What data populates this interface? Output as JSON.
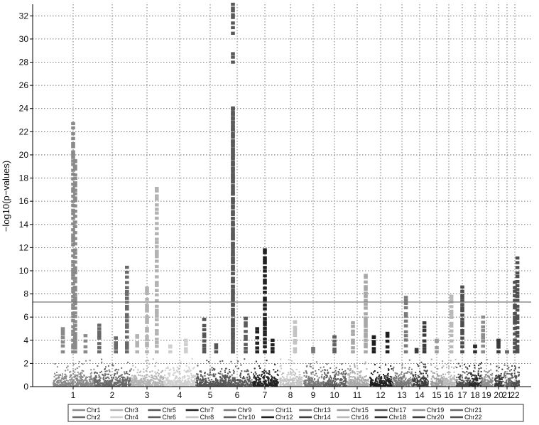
{
  "chart_data": {
    "type": "scatter",
    "title": "",
    "xlabel": "",
    "ylabel": "−log10(p−values)",
    "ylim": [
      0,
      33
    ],
    "yticks": [
      0,
      2,
      4,
      6,
      8,
      10,
      12,
      14,
      16,
      18,
      20,
      22,
      24,
      26,
      28,
      30,
      32
    ],
    "grid": true,
    "threshold": 7.3,
    "legend_position": "bottom",
    "chromosomes": [
      {
        "label": "1",
        "legend": "Chr1",
        "color": "#8a8a8a",
        "background_max": 3.0,
        "peaks": [
          [
            -0.25,
            5.0
          ],
          [
            0.0,
            22.7
          ],
          [
            0.05,
            19.5
          ],
          [
            0.3,
            4.4
          ]
        ]
      },
      {
        "label": "2",
        "legend": "Chr2",
        "color": "#6a6a6a",
        "background_max": 3.5,
        "peaks": [
          [
            -0.35,
            5.3
          ],
          [
            0.1,
            4.2
          ],
          [
            0.4,
            10.3
          ]
        ]
      },
      {
        "label": "3",
        "legend": "Chr3",
        "color": "#b3b3b3",
        "background_max": 2.8,
        "peaks": [
          [
            0.0,
            8.5
          ],
          [
            0.3,
            17.1
          ],
          [
            -0.3,
            4.4
          ]
        ]
      },
      {
        "label": "4",
        "legend": "Chr4",
        "color": "#cfcfcf",
        "background_max": 2.5,
        "peaks": [
          [
            0.2,
            4.0
          ],
          [
            -0.3,
            3.5
          ]
        ]
      },
      {
        "label": "5",
        "legend": "Chr5",
        "color": "#555555",
        "background_max": 3.0,
        "peaks": [
          [
            -0.2,
            5.8
          ],
          [
            0.2,
            3.6
          ]
        ]
      },
      {
        "label": "6",
        "legend": "Chr6",
        "color": "#5a5a5a",
        "background_max": 3.5,
        "peaks": [
          [
            -0.15,
            33.0
          ],
          [
            -0.15,
            24.0
          ],
          [
            0.3,
            5.9
          ]
        ]
      },
      {
        "label": "7",
        "legend": "Chr7",
        "color": "#222222",
        "background_max": 2.8,
        "peaks": [
          [
            0.0,
            11.8
          ],
          [
            -0.3,
            5.0
          ],
          [
            0.3,
            4.0
          ]
        ]
      },
      {
        "label": "8",
        "legend": "Chr8",
        "color": "#c4c4c4",
        "background_max": 2.6,
        "peaks": [
          [
            0.2,
            5.6
          ]
        ]
      },
      {
        "label": "9",
        "legend": "Chr9",
        "color": "#7a7a7a",
        "background_max": 2.5,
        "peaks": [
          [
            0.0,
            3.3
          ]
        ]
      },
      {
        "label": "10",
        "legend": "Chr10",
        "color": "#606060",
        "background_max": 2.8,
        "peaks": [
          [
            0.0,
            4.3
          ]
        ]
      },
      {
        "label": "11",
        "legend": "Chr11",
        "color": "#a8a8a8",
        "background_max": 3.0,
        "peaks": [
          [
            0.4,
            9.6
          ],
          [
            -0.2,
            5.5
          ]
        ]
      },
      {
        "label": "12",
        "legend": "Chr12",
        "color": "#1e1e1e",
        "background_max": 3.2,
        "peaks": [
          [
            -0.3,
            4.3
          ],
          [
            0.3,
            4.6
          ]
        ]
      },
      {
        "label": "13",
        "legend": "Chr13",
        "color": "#7a7a7a",
        "background_max": 2.6,
        "peaks": [
          [
            0.2,
            7.7
          ]
        ]
      },
      {
        "label": "14",
        "legend": "Chr14",
        "color": "#3c3c3c",
        "background_max": 2.6,
        "peaks": [
          [
            0.3,
            5.5
          ],
          [
            -0.2,
            3.2
          ]
        ]
      },
      {
        "label": "15",
        "legend": "Chr15",
        "color": "#9c9c9c",
        "background_max": 2.6,
        "peaks": [
          [
            0.0,
            4.0
          ]
        ]
      },
      {
        "label": "16",
        "legend": "Chr16",
        "color": "#b9b9b9",
        "background_max": 3.0,
        "peaks": [
          [
            0.2,
            7.8
          ]
        ]
      },
      {
        "label": "17",
        "legend": "Chr17",
        "color": "#4e4e4e",
        "background_max": 3.2,
        "peaks": [
          [
            0.0,
            8.6
          ]
        ]
      },
      {
        "label": "18",
        "legend": "Chr18",
        "color": "#2c2c2c",
        "background_max": 2.8,
        "peaks": [
          [
            0.0,
            3.5
          ]
        ]
      },
      {
        "label": "19",
        "legend": "Chr19",
        "color": "#8e8e8e",
        "background_max": 3.0,
        "peaks": [
          [
            -0.3,
            6.0
          ]
        ]
      },
      {
        "label": "20",
        "legend": "Chr20",
        "color": "#3a3a3a",
        "background_max": 2.6,
        "peaks": [
          [
            0.0,
            4.0
          ]
        ]
      },
      {
        "label": "21",
        "legend": "Chr21",
        "color": "#686868",
        "background_max": 2.4,
        "peaks": [
          [
            0.0,
            3.0
          ]
        ]
      },
      {
        "label": "22",
        "legend": "Chr22",
        "color": "#505050",
        "background_max": 3.0,
        "peaks": [
          [
            0.3,
            11.1
          ],
          [
            0.0,
            9.0
          ]
        ]
      }
    ]
  }
}
